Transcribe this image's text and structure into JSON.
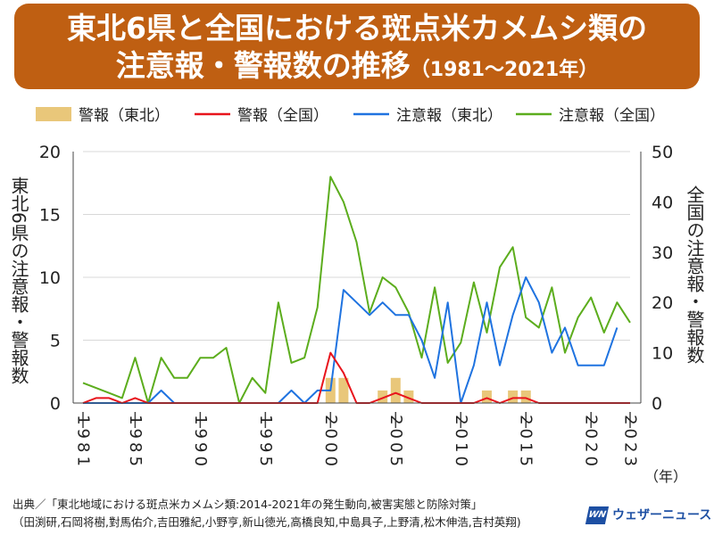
{
  "title": {
    "line1": "東北6県と全国における斑点米カメムシ類の",
    "line2_main": "注意報・警報数の推移",
    "line2_sub": "（1981〜2021年）"
  },
  "legend": {
    "items": [
      {
        "label": "警報（東北）",
        "color": "#e9c77a",
        "kind": "bar"
      },
      {
        "label": "警報（全国）",
        "color": "#e8141c",
        "kind": "line"
      },
      {
        "label": "注意報（東北）",
        "color": "#1f73e0",
        "kind": "line"
      },
      {
        "label": "注意報（全国）",
        "color": "#5cad1d",
        "kind": "line"
      }
    ]
  },
  "axis": {
    "left_label": "東北6県の注意報・警報数",
    "right_label": "全国の注意報・警報数",
    "year_unit": "（年）",
    "left_ticks": [
      "0",
      "5",
      "10",
      "15",
      "20"
    ],
    "right_ticks": [
      "0",
      "10",
      "20",
      "30",
      "40",
      "50"
    ],
    "x_tick_labels": [
      {
        "year": 1981,
        "text": "1981"
      },
      {
        "year": 1985,
        "text": "1985"
      },
      {
        "year": 1990,
        "text": "1990"
      },
      {
        "year": 1995,
        "text": "1995"
      },
      {
        "year": 2000,
        "text": "2000"
      },
      {
        "year": 2005,
        "text": "2005"
      },
      {
        "year": 2010,
        "text": "2010"
      },
      {
        "year": 2015,
        "text": "2015"
      },
      {
        "year": 2020,
        "text": "2020"
      },
      {
        "year": 2023,
        "text": "2023"
      }
    ]
  },
  "chart_data": {
    "type": "line",
    "x": [
      1981,
      1982,
      1983,
      1984,
      1985,
      1986,
      1987,
      1988,
      1989,
      1990,
      1991,
      1992,
      1993,
      1994,
      1995,
      1996,
      1997,
      1998,
      1999,
      2000,
      2001,
      2002,
      2003,
      2004,
      2005,
      2006,
      2007,
      2008,
      2009,
      2010,
      2011,
      2012,
      2013,
      2014,
      2015,
      2016,
      2017,
      2018,
      2019,
      2020,
      2021,
      2022,
      2023
    ],
    "xlim": [
      1981,
      2023
    ],
    "y_left_lim": [
      0,
      20
    ],
    "y_right_lim": [
      0,
      50
    ],
    "series": [
      {
        "name": "警報（東北）",
        "axis": "left",
        "kind": "bar",
        "color": "#e9c77a",
        "values": [
          0,
          0,
          0,
          0,
          0,
          0,
          0,
          0,
          0,
          0,
          0,
          0,
          0,
          0,
          0,
          0,
          0,
          0,
          0,
          2,
          2,
          0,
          0,
          1,
          2,
          1,
          0,
          0,
          0,
          0,
          0,
          1,
          0,
          1,
          1,
          0,
          0,
          0,
          0,
          0,
          0,
          0,
          0
        ]
      },
      {
        "name": "警報（全国）",
        "axis": "right",
        "kind": "line",
        "color": "#e8141c",
        "values": [
          0,
          1,
          1,
          0,
          1,
          0,
          0,
          0,
          0,
          0,
          0,
          0,
          0,
          0,
          0,
          0,
          0,
          0,
          0,
          10,
          6,
          0,
          0,
          1,
          2,
          1,
          0,
          0,
          0,
          0,
          0,
          1,
          0,
          1,
          1,
          0,
          0,
          0,
          0,
          0,
          0,
          0,
          0
        ]
      },
      {
        "name": "注意報（東北）",
        "axis": "left",
        "kind": "line",
        "color": "#1f73e0",
        "values": [
          0,
          0,
          0,
          0,
          0,
          0,
          1,
          0,
          0,
          0,
          0,
          0,
          0,
          0,
          0,
          0,
          1,
          0,
          1,
          1,
          9,
          8,
          7,
          8,
          7,
          7,
          5,
          2,
          8,
          0,
          3,
          8,
          3,
          7,
          10,
          8,
          4,
          6,
          3,
          3,
          3,
          6,
          null
        ]
      },
      {
        "name": "注意報（全国）",
        "axis": "right",
        "kind": "line",
        "color": "#5cad1d",
        "values": [
          4,
          3,
          2,
          1,
          9,
          0,
          9,
          5,
          5,
          9,
          9,
          11,
          0,
          5,
          2,
          20,
          8,
          9,
          19,
          45,
          40,
          32,
          18,
          25,
          23,
          18,
          9,
          23,
          8,
          12,
          24,
          14,
          27,
          31,
          17,
          15,
          23,
          10,
          17,
          21,
          14,
          20,
          16
        ]
      }
    ]
  },
  "footer": {
    "line1": "出典／「東北地域における斑点米カメムシ類:2014-2021年の発生動向,被害実態と防除対策」",
    "line2": "（田渕研,石岡将樹,對馬佑介,吉田雅紀,小野亨,新山徳光,高橋良知,中島具子,上野清,松木伸浩,吉村英翔)"
  },
  "brand": {
    "logo": "WN",
    "name": "ウェザーニュース"
  }
}
